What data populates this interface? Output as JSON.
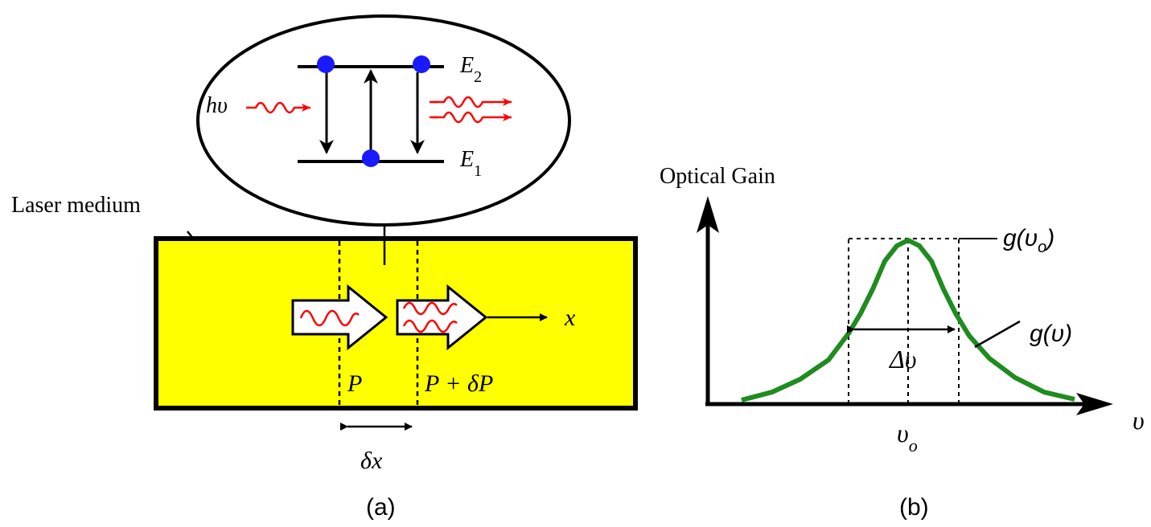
{
  "panel_a": {
    "caption": "(a)",
    "medium_label": "Laser medium",
    "photon_in_label": "hυ",
    "level_upper": {
      "symbol": "E",
      "sub": "2"
    },
    "level_lower": {
      "symbol": "E",
      "sub": "1"
    },
    "power_in_label": "P",
    "power_out_label": "P + δP",
    "axis_label": "x",
    "slice_label": "δx",
    "colors": {
      "medium_fill": "#ffff00",
      "atom": "#1a1aff",
      "photon": "#ff0000"
    }
  },
  "panel_b": {
    "caption": "(b)",
    "ylabel": "Optical Gain",
    "xlabel": "υ",
    "peak_label": {
      "main": "g(υ",
      "sub": "o",
      "tail": ")"
    },
    "curve_label": "g(υ)",
    "width_label": "Δυ",
    "center_label": {
      "main": "υ",
      "sub": "o"
    },
    "curve_color": "#1e8c1e"
  }
}
